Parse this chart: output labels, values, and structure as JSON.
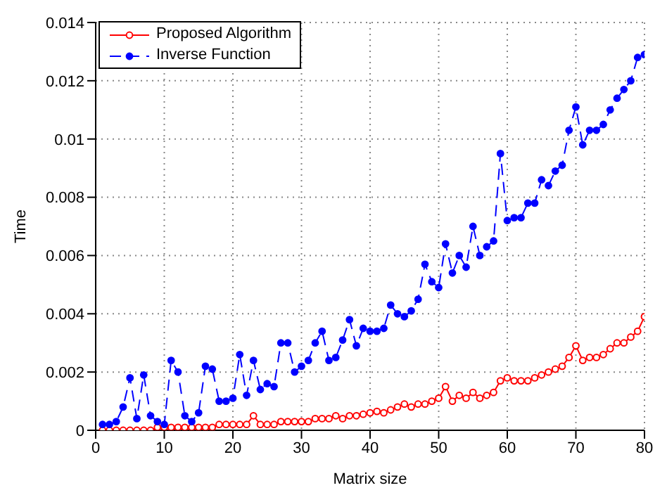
{
  "chart_data": {
    "type": "line",
    "xlabel": "Matrix size",
    "ylabel": "Time",
    "xlim": [
      0,
      80
    ],
    "xticks": [
      0,
      10,
      20,
      30,
      40,
      50,
      60,
      70,
      80
    ],
    "ylim": [
      0,
      0.014
    ],
    "yticks": [
      0,
      0.002,
      0.004,
      0.006,
      0.008,
      0.01,
      0.012,
      0.014
    ],
    "grid": true,
    "legend": "top left",
    "x": [
      1,
      2,
      3,
      4,
      5,
      6,
      7,
      8,
      9,
      10,
      11,
      12,
      13,
      14,
      15,
      16,
      17,
      18,
      19,
      20,
      21,
      22,
      23,
      24,
      25,
      26,
      27,
      28,
      29,
      30,
      31,
      32,
      33,
      34,
      35,
      36,
      37,
      38,
      39,
      40,
      41,
      42,
      43,
      44,
      45,
      46,
      47,
      48,
      49,
      50,
      51,
      52,
      53,
      54,
      55,
      56,
      57,
      58,
      59,
      60,
      61,
      62,
      63,
      64,
      65,
      66,
      67,
      68,
      69,
      70,
      71,
      72,
      73,
      74,
      75,
      76,
      77,
      78,
      79,
      80
    ],
    "series": [
      {
        "name": "Proposed Algorithm",
        "color": "#ff0000",
        "marker": "circle",
        "line_style": "solid",
        "values": [
          0,
          0,
          0,
          0,
          0,
          0,
          0,
          0,
          0.0001,
          0.0001,
          0.0001,
          0.0001,
          0.0001,
          0.0001,
          0.0001,
          0.0001,
          0.0001,
          0.0002,
          0.0002,
          0.0002,
          0.0002,
          0.0002,
          0.0005,
          0.0002,
          0.0002,
          0.0002,
          0.0003,
          0.0003,
          0.0003,
          0.0003,
          0.0003,
          0.0004,
          0.0004,
          0.0004,
          0.0005,
          0.0004,
          0.0005,
          0.0005,
          0.00055,
          0.0006,
          0.00065,
          0.0006,
          0.0007,
          0.0008,
          0.0009,
          0.0008,
          0.0009,
          0.0009,
          0.001,
          0.0011,
          0.0015,
          0.001,
          0.0012,
          0.0011,
          0.0013,
          0.0011,
          0.0012,
          0.0013,
          0.0017,
          0.0018,
          0.0017,
          0.0017,
          0.0017,
          0.0018,
          0.0019,
          0.002,
          0.0021,
          0.0022,
          0.0025,
          0.0029,
          0.0024,
          0.0025,
          0.0025,
          0.0026,
          0.0028,
          0.003,
          0.003,
          0.0032,
          0.0034,
          0.0039
        ]
      },
      {
        "name": "Inverse Function",
        "color": "#0000ff",
        "marker": "circle",
        "line_style": "dashed",
        "values": [
          0.0002,
          0.0002,
          0.0003,
          0.0008,
          0.0018,
          0.0004,
          0.0019,
          0.0005,
          0.0003,
          0.0002,
          0.0024,
          0.002,
          0.0005,
          0.0003,
          0.0006,
          0.0022,
          0.0021,
          0.001,
          0.001,
          0.0011,
          0.0026,
          0.0012,
          0.0024,
          0.0014,
          0.0016,
          0.0015,
          0.003,
          0.003,
          0.002,
          0.0022,
          0.0024,
          0.003,
          0.0034,
          0.0024,
          0.0025,
          0.0031,
          0.0038,
          0.0029,
          0.0035,
          0.0034,
          0.0034,
          0.0035,
          0.0043,
          0.004,
          0.0039,
          0.0041,
          0.0045,
          0.0057,
          0.0051,
          0.0049,
          0.0064,
          0.0054,
          0.006,
          0.0056,
          0.007,
          0.006,
          0.0063,
          0.0065,
          0.0095,
          0.0072,
          0.0073,
          0.0073,
          0.0078,
          0.0078,
          0.0086,
          0.0084,
          0.0089,
          0.0091,
          0.0103,
          0.0111,
          0.0098,
          0.0103,
          0.0103,
          0.0105,
          0.011,
          0.0114,
          0.0117,
          0.012,
          0.0128,
          0.0129
        ]
      }
    ]
  }
}
